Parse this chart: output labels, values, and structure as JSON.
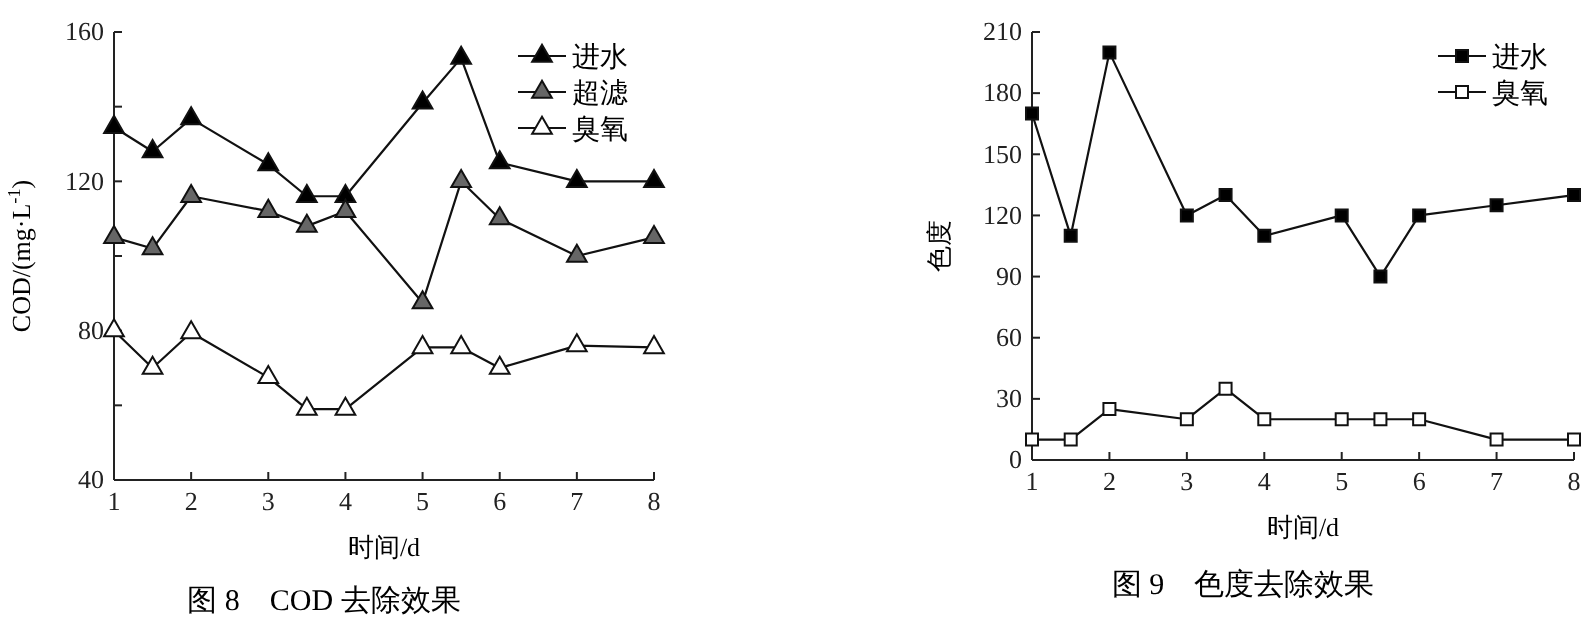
{
  "chart_data": [
    {
      "type": "line",
      "title": "图 8　COD 去除效果",
      "xlabel": "时间/d",
      "ylabel": "COD/(mg·L$^{-1}$)",
      "x": [
        1,
        1.5,
        2,
        3,
        3.5,
        4,
        5,
        5.5,
        6,
        7,
        8
      ],
      "xlim": [
        1,
        8
      ],
      "xticks": [
        1,
        2,
        3,
        4,
        5,
        6,
        7,
        8
      ],
      "ylim": [
        40,
        160
      ],
      "yticks": [
        40,
        {
          "value": 60,
          "label": null
        },
        80,
        {
          "value": 100,
          "label": null
        },
        120,
        {
          "value": 140,
          "label": null
        },
        160
      ],
      "legend": "top right",
      "marker": "triangle",
      "grid": false,
      "series": [
        {
          "name": "进水",
          "color": "#000000",
          "values": [
            134.5,
            128,
            136.8,
            124.5,
            116,
            116,
            141,
            153,
            125,
            120,
            120
          ]
        },
        {
          "name": "超滤",
          "color": "#666666",
          "values": [
            105,
            102,
            116,
            112,
            108,
            112,
            87.5,
            120,
            110,
            100,
            105
          ]
        },
        {
          "name": "臭氧",
          "color": "#ffffff",
          "values": [
            80,
            70,
            79.5,
            67.5,
            59,
            59,
            75.5,
            75.5,
            70,
            76,
            75.5
          ]
        }
      ]
    },
    {
      "type": "line",
      "title": "图 9　色度去除效果",
      "xlabel": "时间/d",
      "ylabel": "色度",
      "x": [
        1,
        1.5,
        2,
        3,
        3.5,
        4,
        5,
        5.5,
        6,
        7,
        8
      ],
      "xlim": [
        1,
        8
      ],
      "xticks": [
        1,
        2,
        3,
        4,
        5,
        6,
        7,
        8
      ],
      "ylim": [
        0,
        210
      ],
      "yticks": [
        0,
        30,
        60,
        90,
        120,
        150,
        180,
        210
      ],
      "legend": "top right",
      "marker": "square",
      "grid": false,
      "series": [
        {
          "name": "进水",
          "color": "#000000",
          "values": [
            170,
            110,
            200,
            120,
            130,
            110,
            120,
            90,
            120,
            125,
            130
          ]
        },
        {
          "name": "臭氧",
          "color": "#ffffff",
          "values": [
            10,
            10,
            25,
            20,
            35,
            20,
            20,
            20,
            20,
            10,
            10
          ]
        }
      ]
    }
  ]
}
